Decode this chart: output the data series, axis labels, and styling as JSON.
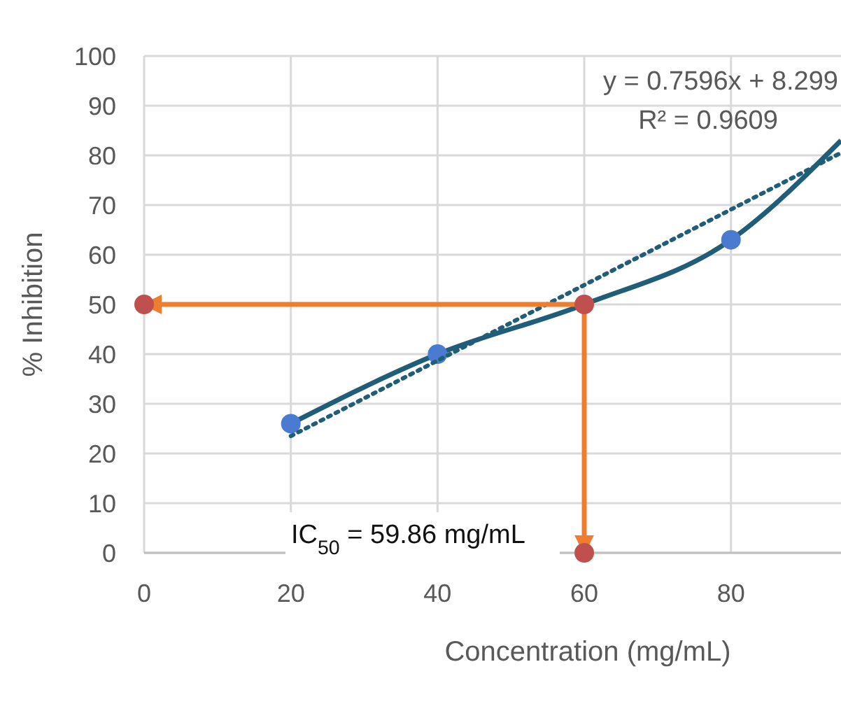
{
  "chart_data": {
    "type": "line",
    "xlabel": "Concentration (mg/mL)",
    "ylabel": "% Inhibition",
    "xlim": [
      0,
      95
    ],
    "xticks": [
      0,
      20,
      40,
      60,
      80
    ],
    "ylim": [
      0,
      100
    ],
    "yticks": [
      0,
      10,
      20,
      30,
      40,
      50,
      60,
      70,
      80,
      90,
      100
    ],
    "grid": true,
    "series": [
      {
        "color": "#1f5d78",
        "x": [
          20,
          40,
          60,
          80,
          95
        ],
        "values": [
          26,
          40,
          50,
          63,
          83
        ],
        "marker": "none",
        "line_style": "solid"
      },
      {
        "type": "scatter",
        "color": "#4a7bd0",
        "x": [
          20,
          40,
          80
        ],
        "values": [
          26,
          40,
          63
        ],
        "marker": "circle"
      },
      {
        "color": "#1f5d78",
        "x": [
          20,
          95
        ],
        "values": [
          23.5,
          80.5
        ],
        "marker": "none",
        "line_style": "dotted"
      },
      {
        "color": "#ed7d31",
        "x": [
          0,
          60,
          60
        ],
        "values": [
          50,
          50,
          0
        ],
        "line_style": "solid"
      },
      {
        "type": "scatter",
        "color": "#c0504d",
        "x": [
          0,
          60,
          60
        ],
        "values": [
          50,
          50,
          0
        ],
        "marker": "circle"
      }
    ],
    "annotations": [
      "y = 0.7596x + 8.299",
      "R² = 0.9609",
      "IC$_{50}$ = 59.86 mg/mL"
    ]
  }
}
